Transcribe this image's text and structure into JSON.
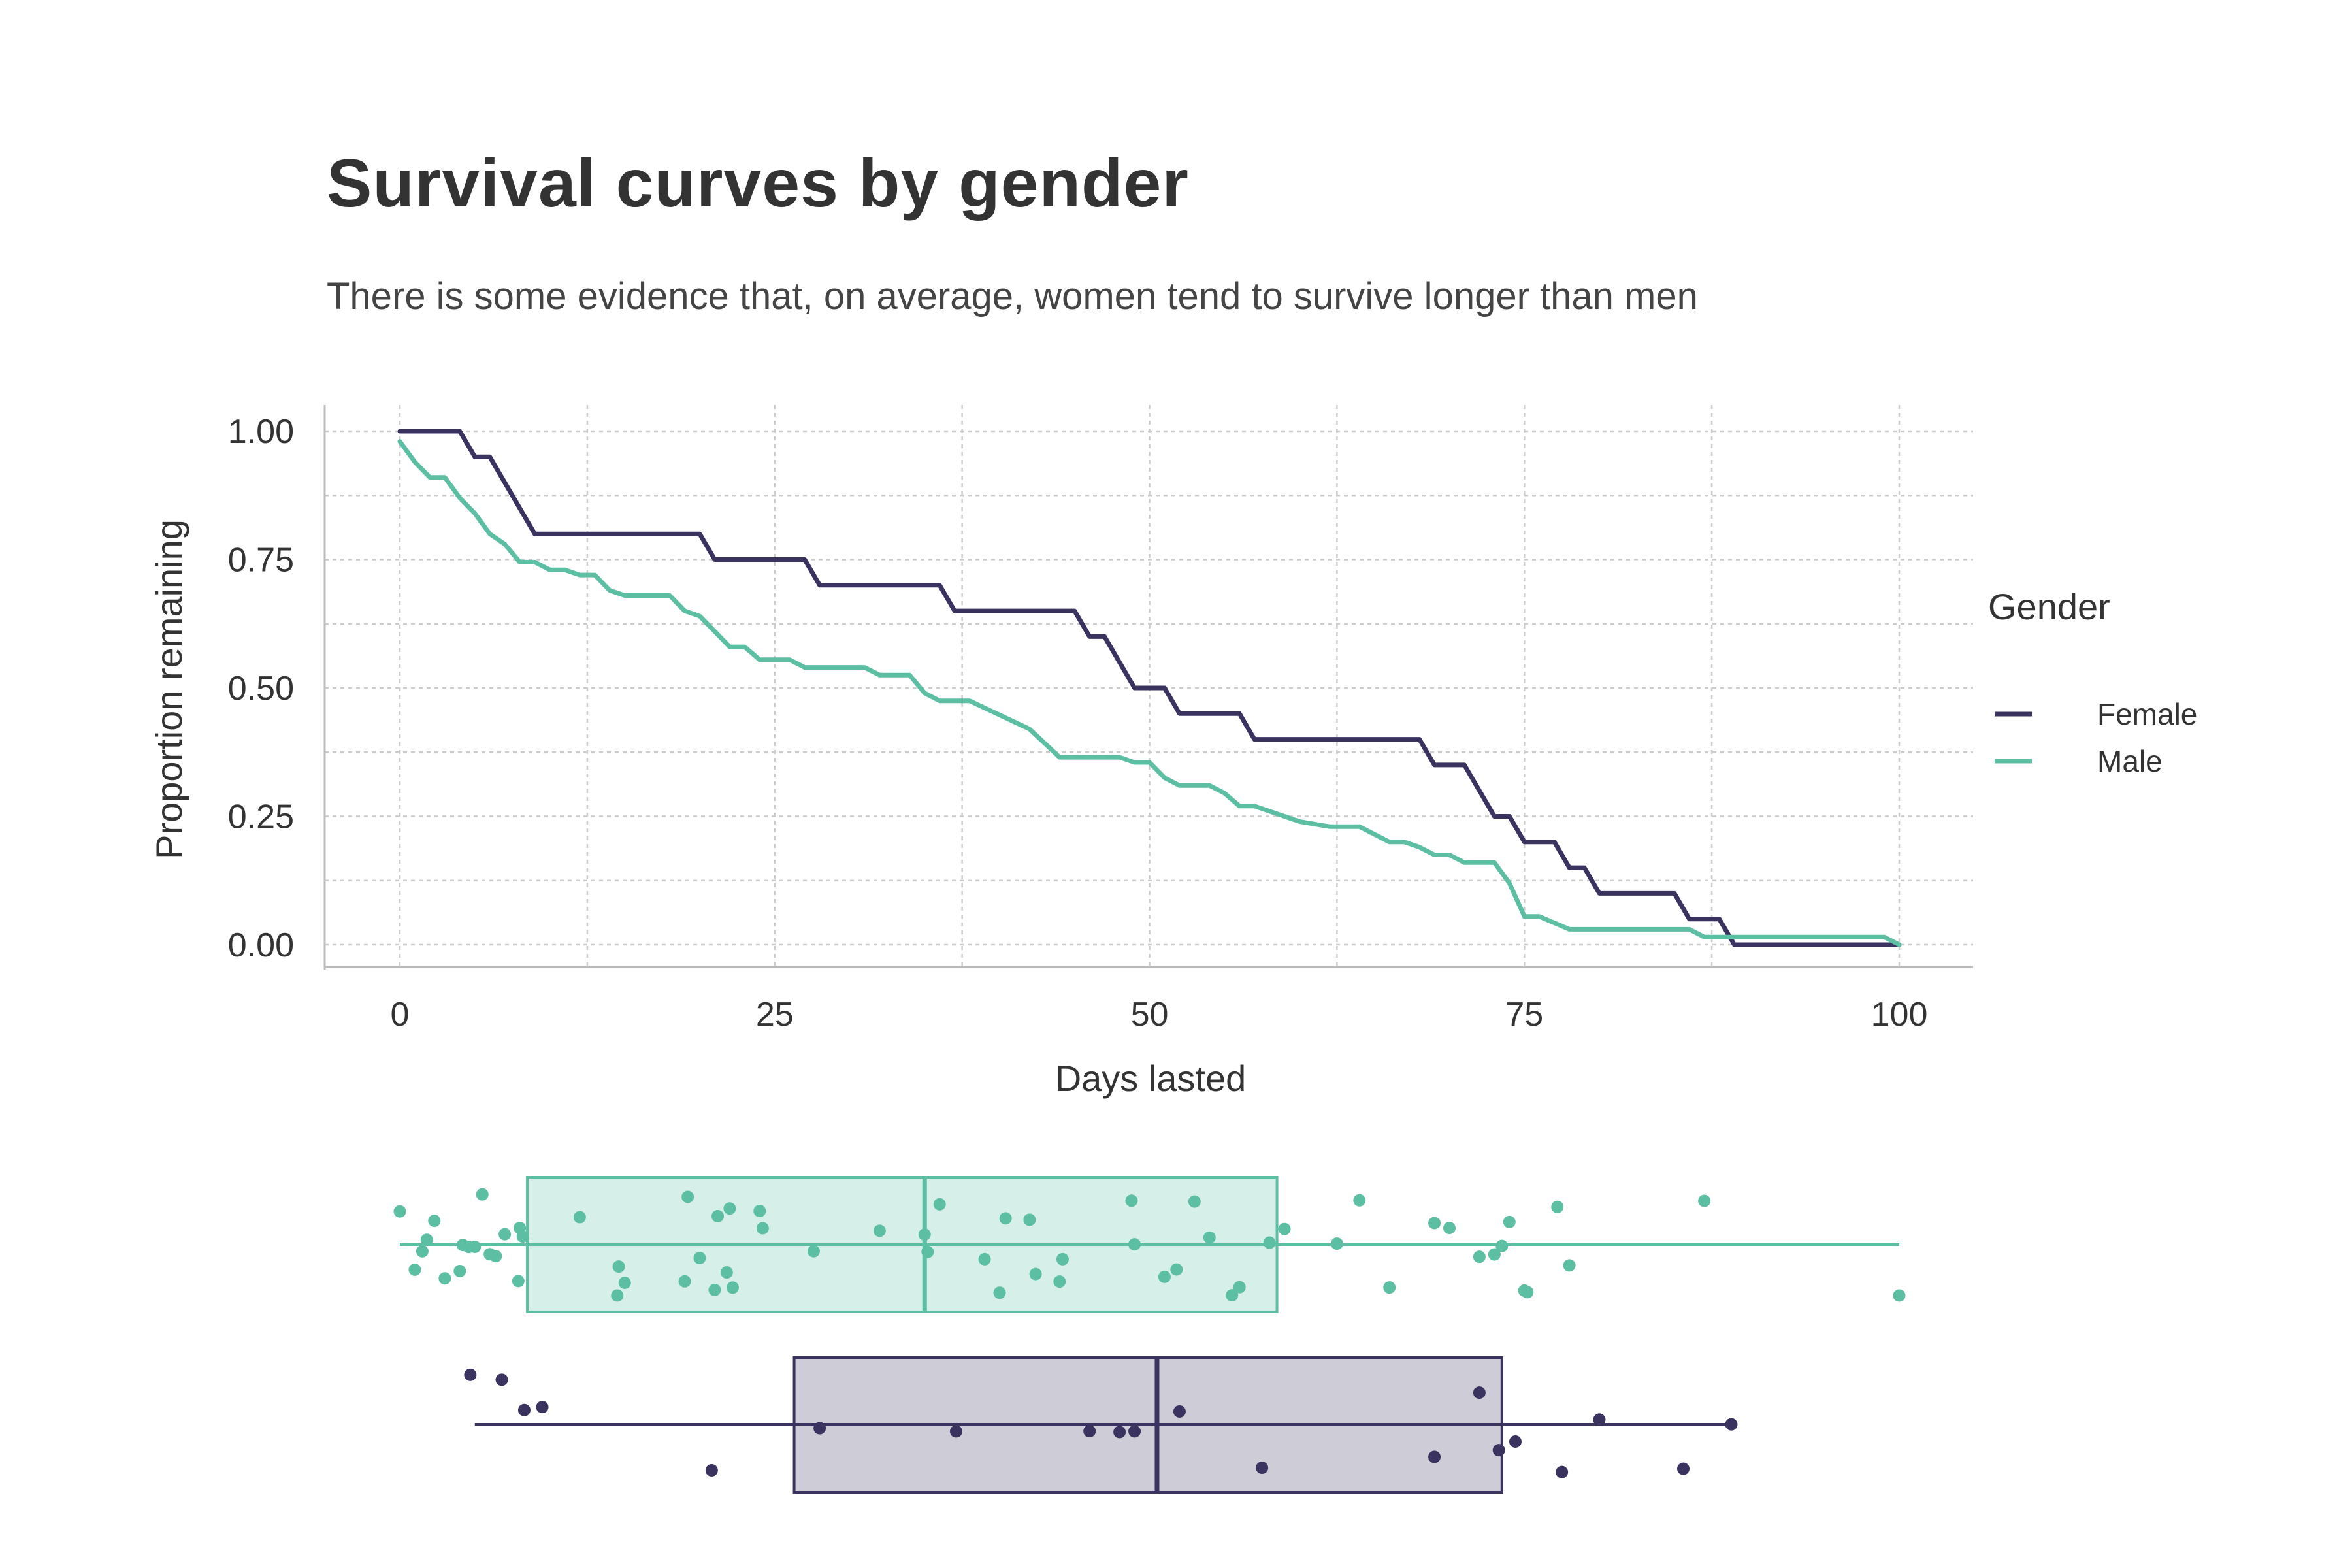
{
  "colors": {
    "female": "#3a325f",
    "male": "#5cbfa3",
    "grid": "#cccccc",
    "axis": "#bbbbbb"
  },
  "chart_data": [
    {
      "type": "line",
      "step": true,
      "title": "Survival curves by gender",
      "subtitle": "There is some evidence that, on average, women tend to survive longer than men",
      "xlabel": "Days lasted",
      "ylabel": "Proportion remaining",
      "xlim": [
        0,
        100
      ],
      "ylim": [
        0,
        1
      ],
      "x_ticks": [
        0,
        25,
        50,
        75,
        100
      ],
      "y_ticks": [
        0,
        0.25,
        0.5,
        0.75,
        1
      ],
      "y_tick_labels": [
        "0.00",
        "0.25",
        "0.50",
        "0.75",
        "1.00"
      ],
      "grid": true,
      "legend": {
        "title": "Gender",
        "placement": "right"
      },
      "series": [
        {
          "name": "Female",
          "color": "#3a325f",
          "points": [
            [
              0,
              1.0
            ],
            [
              4,
              1.0
            ],
            [
              5,
              0.95
            ],
            [
              6,
              0.95
            ],
            [
              9,
              0.8
            ],
            [
              20,
              0.8
            ],
            [
              21,
              0.75
            ],
            [
              27,
              0.75
            ],
            [
              28,
              0.7
            ],
            [
              36,
              0.7
            ],
            [
              37,
              0.65
            ],
            [
              45,
              0.65
            ],
            [
              46,
              0.6
            ],
            [
              47,
              0.6
            ],
            [
              49,
              0.5
            ],
            [
              51,
              0.5
            ],
            [
              52,
              0.45
            ],
            [
              56,
              0.45
            ],
            [
              57,
              0.4
            ],
            [
              68,
              0.4
            ],
            [
              69,
              0.35
            ],
            [
              71,
              0.35
            ],
            [
              73,
              0.25
            ],
            [
              74,
              0.25
            ],
            [
              75,
              0.2
            ],
            [
              77,
              0.2
            ],
            [
              78,
              0.15
            ],
            [
              79,
              0.15
            ],
            [
              80,
              0.1
            ],
            [
              85,
              0.1
            ],
            [
              86,
              0.05
            ],
            [
              88,
              0.05
            ],
            [
              89,
              0.0
            ],
            [
              100,
              0.0
            ]
          ]
        },
        {
          "name": "Male",
          "color": "#5cbfa3",
          "points": [
            [
              0,
              0.98
            ],
            [
              1,
              0.94
            ],
            [
              2,
              0.91
            ],
            [
              3,
              0.91
            ],
            [
              4,
              0.87
            ],
            [
              5,
              0.84
            ],
            [
              6,
              0.8
            ],
            [
              7,
              0.78
            ],
            [
              8,
              0.745
            ],
            [
              9,
              0.745
            ],
            [
              10,
              0.73
            ],
            [
              11,
              0.73
            ],
            [
              12,
              0.72
            ],
            [
              13,
              0.72
            ],
            [
              14,
              0.69
            ],
            [
              15,
              0.68
            ],
            [
              18,
              0.68
            ],
            [
              19,
              0.65
            ],
            [
              20,
              0.64
            ],
            [
              21,
              0.61
            ],
            [
              22,
              0.58
            ],
            [
              23,
              0.58
            ],
            [
              24,
              0.555
            ],
            [
              26,
              0.555
            ],
            [
              27,
              0.54
            ],
            [
              31,
              0.54
            ],
            [
              32,
              0.525
            ],
            [
              34,
              0.525
            ],
            [
              35,
              0.49
            ],
            [
              36,
              0.475
            ],
            [
              38,
              0.475
            ],
            [
              42,
              0.42
            ],
            [
              44,
              0.365
            ],
            [
              48,
              0.365
            ],
            [
              49,
              0.355
            ],
            [
              50,
              0.355
            ],
            [
              51,
              0.325
            ],
            [
              52,
              0.31
            ],
            [
              54,
              0.31
            ],
            [
              55,
              0.295
            ],
            [
              56,
              0.27
            ],
            [
              57,
              0.27
            ],
            [
              60,
              0.24
            ],
            [
              62,
              0.23
            ],
            [
              64,
              0.23
            ],
            [
              65,
              0.215
            ],
            [
              66,
              0.2
            ],
            [
              67,
              0.2
            ],
            [
              68,
              0.19
            ],
            [
              69,
              0.175
            ],
            [
              70,
              0.175
            ],
            [
              71,
              0.16
            ],
            [
              73,
              0.16
            ],
            [
              74,
              0.12
            ],
            [
              75,
              0.055
            ],
            [
              76,
              0.055
            ],
            [
              78,
              0.03
            ],
            [
              86,
              0.03
            ],
            [
              87,
              0.015
            ],
            [
              99,
              0.015
            ],
            [
              100,
              0.0
            ]
          ]
        }
      ]
    },
    {
      "type": "box",
      "xlim": [
        0,
        100
      ],
      "series": [
        {
          "name": "Male",
          "color": "#5cbfa3",
          "min": 0,
          "q1": 8.5,
          "median": 35,
          "q3": 58.5,
          "max": 100,
          "points": [
            0,
            1,
            1.5,
            1.8,
            2.3,
            3,
            4,
            4.2,
            4.6,
            5,
            5.5,
            6,
            6.4,
            7,
            7.9,
            8,
            8.2,
            12,
            14.5,
            14.6,
            15,
            19,
            19.2,
            20,
            21,
            21.2,
            21.8,
            22,
            22.2,
            24,
            24.2,
            27.6,
            32,
            35,
            35.2,
            36,
            39,
            40,
            40.4,
            42,
            42.4,
            44,
            44.2,
            48.8,
            49,
            51,
            51.8,
            53,
            54,
            55.5,
            56,
            58,
            59,
            62.5,
            64,
            66,
            69,
            70,
            72,
            73,
            73.5,
            74,
            75,
            75.2,
            77.2,
            78,
            87,
            100
          ]
        },
        {
          "name": "Female",
          "color": "#3a325f",
          "min": 5,
          "q1": 26.3,
          "median": 50.5,
          "q3": 73.5,
          "max": 89,
          "points": [
            4.7,
            6.8,
            8.3,
            9.5,
            20.8,
            28,
            37.1,
            46,
            48,
            49,
            52,
            57.5,
            69,
            72,
            73.3,
            74.4,
            77.5,
            80,
            85.6,
            88.8
          ]
        }
      ]
    }
  ]
}
